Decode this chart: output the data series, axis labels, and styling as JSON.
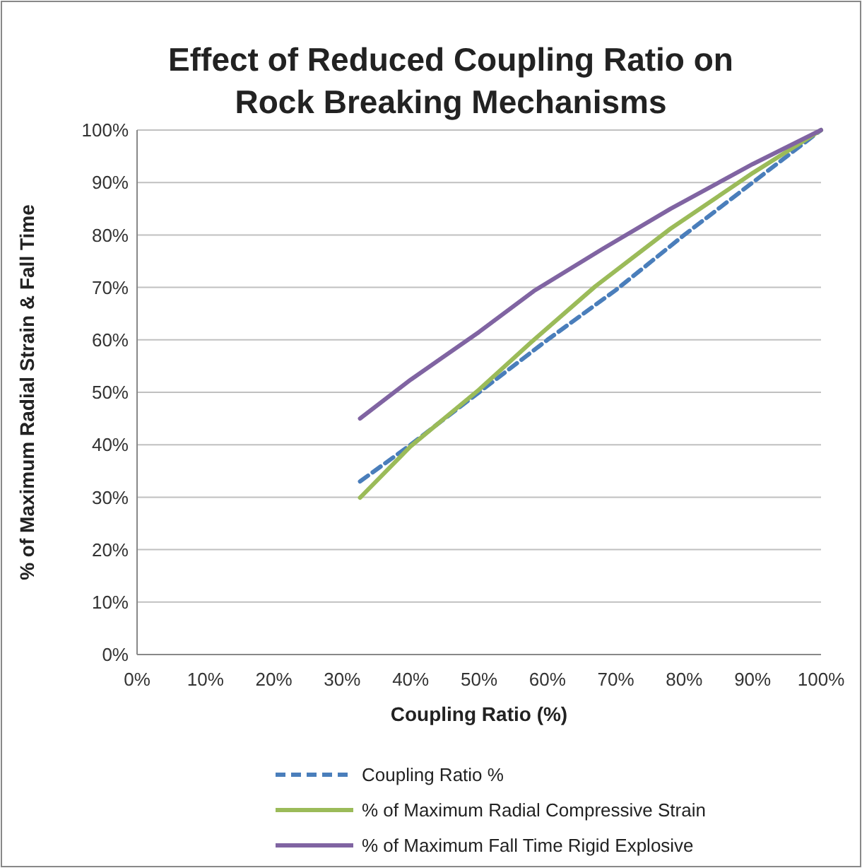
{
  "chart_data": {
    "type": "line",
    "title": "Effect of Reduced Coupling Ratio on Rock Breaking Mechanisms",
    "xlabel": "Coupling Ratio (%)",
    "ylabel": "% of Maximum Radial Strain & Fall Time",
    "xlim": [
      0,
      100
    ],
    "ylim": [
      0,
      100
    ],
    "xticks": [
      {
        "value": 0,
        "label": "0%"
      },
      {
        "value": 10,
        "label": "10%"
      },
      {
        "value": 20,
        "label": "20%"
      },
      {
        "value": 30,
        "label": "30%"
      },
      {
        "value": 40,
        "label": "40%"
      },
      {
        "value": 50,
        "label": "50%"
      },
      {
        "value": 60,
        "label": "60%"
      },
      {
        "value": 70,
        "label": "70%"
      },
      {
        "value": 80,
        "label": "80%"
      },
      {
        "value": 90,
        "label": "90%"
      },
      {
        "value": 100,
        "label": "100%"
      }
    ],
    "yticks": [
      {
        "value": 0,
        "label": "0%"
      },
      {
        "value": 10,
        "label": "10%"
      },
      {
        "value": 20,
        "label": "20%"
      },
      {
        "value": 30,
        "label": "30%"
      },
      {
        "value": 40,
        "label": "40%"
      },
      {
        "value": 50,
        "label": "50%"
      },
      {
        "value": 60,
        "label": "60%"
      },
      {
        "value": 70,
        "label": "70%"
      },
      {
        "value": 80,
        "label": "80%"
      },
      {
        "value": 90,
        "label": "90%"
      },
      {
        "value": 100,
        "label": "100%"
      }
    ],
    "grid": "y",
    "legend": "bottom",
    "marker": "none",
    "series": [
      {
        "name": "Coupling Ratio %",
        "color": "#4a7ebb",
        "line_style": "dashed",
        "x": [
          32.6,
          40,
          50,
          60,
          70,
          80,
          90,
          100
        ],
        "values": [
          33,
          40,
          50,
          60,
          69.5,
          80,
          90,
          100
        ]
      },
      {
        "name": "% of Maximum Radial Compressive Strain",
        "color": "#9bbb59",
        "line_style": "solid",
        "x": [
          32.6,
          40,
          50,
          57.5,
          67,
          78,
          90,
          100
        ],
        "values": [
          29.9,
          39.7,
          50.5,
          59.4,
          70.2,
          81.2,
          91.8,
          100
        ]
      },
      {
        "name": "% of Maximum Fall Time Rigid Explosive",
        "color": "#8064a2",
        "line_style": "solid",
        "x": [
          32.6,
          40,
          50,
          58,
          68,
          78,
          90,
          100
        ],
        "values": [
          45,
          52.4,
          61.5,
          69.3,
          77.3,
          85,
          93.5,
          100
        ]
      }
    ]
  }
}
